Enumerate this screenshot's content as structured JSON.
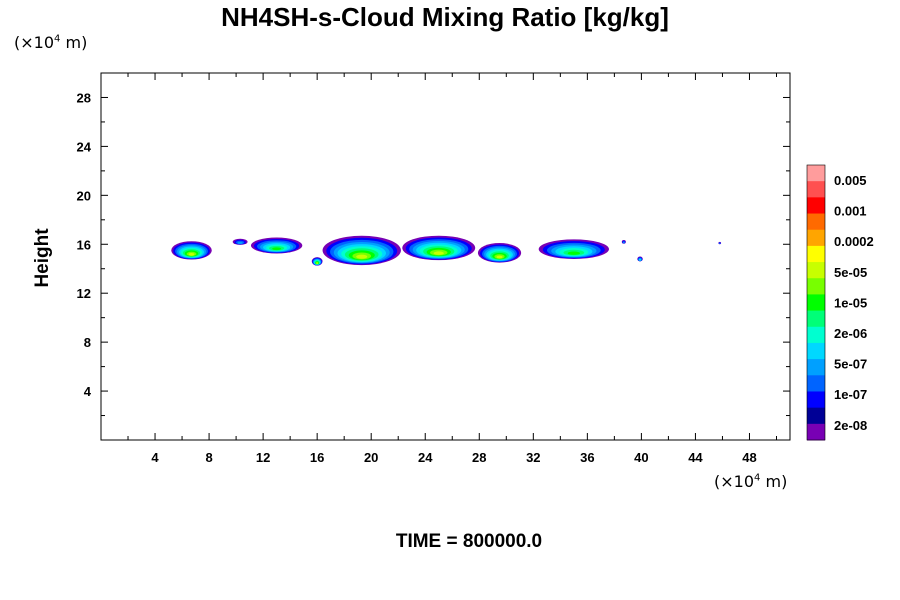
{
  "chart_data": {
    "type": "heatmap",
    "title": "NH4SH-s-Cloud Mixing Ratio [kg/kg]",
    "ylabel": "Height",
    "y_unit": "(×10⁴ m)",
    "x_unit": "(×10⁴ m)",
    "xlim": [
      0,
      51
    ],
    "ylim": [
      0,
      30
    ],
    "x_ticks": [
      4,
      8,
      12,
      16,
      20,
      24,
      28,
      32,
      36,
      40,
      44,
      48
    ],
    "y_ticks": [
      4,
      8,
      12,
      16,
      20,
      24,
      28
    ],
    "footer": "TIME = 800000.0",
    "colorbar": {
      "labels": [
        "0.005",
        "0.001",
        "0.0002",
        "5e-05",
        "1e-05",
        "2e-06",
        "5e-07",
        "1e-07",
        "2e-08"
      ],
      "colors_top_to_bottom": [
        "#ff9c9c",
        "#ff5050",
        "#ff0000",
        "#ff6a00",
        "#ffa500",
        "#ffff00",
        "#c8ff00",
        "#78ff00",
        "#00ff00",
        "#00ff78",
        "#00ffd0",
        "#00d8ff",
        "#00a0ff",
        "#0064ff",
        "#0000ff",
        "#000096",
        "#7800b4"
      ]
    },
    "cloud_features": [
      {
        "x_center": 6.7,
        "y_center": 15.5,
        "x_half_width": 1.5,
        "y_half_height": 0.75,
        "max_level": "1e-05"
      },
      {
        "x_center": 10.3,
        "y_center": 16.2,
        "x_half_width": 0.55,
        "y_half_height": 0.25,
        "max_level": "1e-07"
      },
      {
        "x_center": 13.0,
        "y_center": 15.9,
        "x_half_width": 1.9,
        "y_half_height": 0.65,
        "max_level": "2e-06"
      },
      {
        "x_center": 16.0,
        "y_center": 14.6,
        "x_half_width": 0.4,
        "y_half_height": 0.35,
        "max_level": "1e-05"
      },
      {
        "x_center": 19.3,
        "y_center": 15.5,
        "x_half_width": 2.9,
        "y_half_height": 1.2,
        "max_level": "5e-05"
      },
      {
        "x_center": 25.0,
        "y_center": 15.7,
        "x_half_width": 2.7,
        "y_half_height": 1.0,
        "max_level": "1e-05"
      },
      {
        "x_center": 29.5,
        "y_center": 15.3,
        "x_half_width": 1.6,
        "y_half_height": 0.8,
        "max_level": "5e-05"
      },
      {
        "x_center": 35.0,
        "y_center": 15.6,
        "x_half_width": 2.6,
        "y_half_height": 0.8,
        "max_level": "2e-06"
      },
      {
        "x_center": 38.7,
        "y_center": 16.2,
        "x_half_width": 0.15,
        "y_half_height": 0.15,
        "max_level": "1e-07"
      },
      {
        "x_center": 39.9,
        "y_center": 14.8,
        "x_half_width": 0.2,
        "y_half_height": 0.2,
        "max_level": "5e-07"
      },
      {
        "x_center": 45.8,
        "y_center": 16.1,
        "x_half_width": 0.1,
        "y_half_height": 0.1,
        "max_level": "1e-07"
      }
    ]
  }
}
